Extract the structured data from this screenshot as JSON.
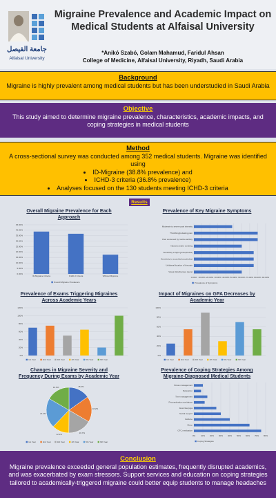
{
  "header": {
    "logo_arabic": "جامعة الفيصل",
    "logo_english": "Alfaisal University",
    "title": "Migraine Prevalence and Academic Impact on Medical Students at Alfaisal University",
    "authors": "*Anikó Szabó, Golam Mahamud, Faridul Ahsan",
    "affiliation": "College of Medicine, Alfaisal University, Riyadh, Saudi Arabia"
  },
  "background": {
    "heading": "Background",
    "text": "Migraine is highly prevalent among medical students but has been understudied in Saudi Arabia"
  },
  "objective": {
    "heading": "Objective",
    "text": "This study aimed to determine migraine prevalence, characteristics, academic impacts, and coping strategies in medical students"
  },
  "method": {
    "heading": "Method",
    "text": "A cross-sectional survey was conducted among 352 medical students. Migraine was identified using",
    "bullets": [
      "ID-Migraine (38.8% prevalence) and",
      "ICHD-3 criteria (36.8% prevalence)",
      "Analyses focused on the 130 students meeting ICHD-3 criteria"
    ]
  },
  "results_label": "Results",
  "chart_data": [
    {
      "type": "bar",
      "title": "Overall Migraine Prevalence for Each Approach",
      "categories": [
        "ID-Migraine Criteria",
        "ICHD-3 Criteria",
        "Without Migraine"
      ],
      "series": [
        {
          "name": "Overall Migraine Prevalence",
          "color": "#4472c4",
          "values": [
            38.8,
            36.8,
            17.6
          ]
        }
      ],
      "ylim": [
        0,
        45
      ],
      "yticks": [
        {
          "value": 0,
          "label": "0.00%"
        },
        {
          "value": 5,
          "label": "5.00%"
        },
        {
          "value": 10,
          "label": "10.00%"
        },
        {
          "value": 15,
          "label": "15.00%"
        },
        {
          "value": 20,
          "label": "20.00%"
        },
        {
          "value": 25,
          "label": "25.00%"
        },
        {
          "value": 30,
          "label": "30.00%"
        },
        {
          "value": 35,
          "label": "35.00%"
        },
        {
          "value": 40,
          "label": "40.00%"
        },
        {
          "value": 45,
          "label": "45.00%"
        }
      ]
    },
    {
      "type": "hbar",
      "title": "Prevalence of Key Migraine Symptoms",
      "categories": [
        "Moderate to severe pain intensity",
        "Throbbing/pulsating pain",
        "Pain worsened by routine activity",
        "Nausea and/or vomiting",
        "Sensitivity to light (photophobia)",
        "Sensitivity to sound (phonophobia)",
        "Unilateral location of the pain",
        "Visual disturbances (aura)"
      ],
      "series": [
        {
          "name": "Prevalence of Symptoms",
          "color": "#4472c4",
          "values": [
            48,
            80,
            80,
            60,
            75,
            75,
            75,
            60
          ]
        }
      ],
      "xlim": [
        0,
        90
      ],
      "xticks": [
        {
          "value": 0,
          "label": "0.00%"
        },
        {
          "value": 10,
          "label": "10.00%"
        },
        {
          "value": 20,
          "label": "20.00%"
        },
        {
          "value": 30,
          "label": "30.00%"
        },
        {
          "value": 40,
          "label": "40.00%"
        },
        {
          "value": 50,
          "label": "50.00%"
        },
        {
          "value": 60,
          "label": "60.00%"
        },
        {
          "value": 70,
          "label": "70.00%"
        },
        {
          "value": 80,
          "label": "80.00%"
        },
        {
          "value": 90,
          "label": "90.00%"
        }
      ]
    },
    {
      "type": "bar",
      "title": "Prevalence of Exams Triggering Migraines Across Academic Years",
      "categories": [
        "1st Year",
        "2nd Year",
        "3rd Year",
        "4th Year",
        "5th Year",
        "6th Year"
      ],
      "values": [
        70,
        75,
        50,
        65,
        20,
        100
      ],
      "colors": [
        "#4472c4",
        "#ed7d31",
        "#a5a5a5",
        "#ffc000",
        "#5b9bd5",
        "#70ad47"
      ],
      "ylim": [
        0,
        120
      ],
      "yticks": [
        {
          "value": 0,
          "label": "0%"
        },
        {
          "value": 20,
          "label": "20%"
        },
        {
          "value": 40,
          "label": "40%"
        },
        {
          "value": 60,
          "label": "60%"
        },
        {
          "value": 80,
          "label": "80%"
        },
        {
          "value": 100,
          "label": "100%"
        },
        {
          "value": 120,
          "label": "120%"
        }
      ]
    },
    {
      "type": "bar",
      "title": "Impact of Migraines on GPA Decreases by Academic Year",
      "categories": [
        "1st Year",
        "2nd Year",
        "3rd Year",
        "4th Year",
        "5th Year",
        "6th Year"
      ],
      "values": [
        25,
        55,
        90,
        30,
        70,
        55
      ],
      "colors": [
        "#4472c4",
        "#ed7d31",
        "#a5a5a5",
        "#ffc000",
        "#5b9bd5",
        "#70ad47"
      ],
      "ylim": [
        0,
        100
      ],
      "yticks": [
        {
          "value": 0,
          "label": "0%"
        },
        {
          "value": 20,
          "label": "20%"
        },
        {
          "value": 40,
          "label": "40%"
        },
        {
          "value": 60,
          "label": "60%"
        },
        {
          "value": 80,
          "label": "80%"
        },
        {
          "value": 100,
          "label": "100%"
        }
      ]
    },
    {
      "type": "pie",
      "title": "Changes in Migraine Severity and Frequency During Exams by Academic Year",
      "categories": [
        "1st Year",
        "2nd Year",
        "3rd Year",
        "4th Year",
        "5th Year",
        "6th Year"
      ],
      "values": [
        15.2,
        18.2,
        16.7,
        12.1,
        21.2,
        16.6
      ],
      "value_labels": [
        "15.2%",
        "18.2%",
        "16.7%",
        "12.1%",
        "21.2%",
        "16.6%"
      ],
      "colors": [
        "#4472c4",
        "#ed7d31",
        "#a5a5a5",
        "#ffc000",
        "#5b9bd5",
        "#70ad47"
      ]
    },
    {
      "type": "hbar",
      "title": "Prevalence of Coping Strategies Among Migraine-Diagnosed Medical Students",
      "categories": [
        "Stress management",
        "Relaxation",
        "Time management",
        "Procrastination avoidance",
        "Exercise/yoga",
        "Social support",
        "Caffeine",
        "Sleep",
        "OTC medication"
      ],
      "series": [
        {
          "name": "Coping Strategies",
          "color": "#4472c4",
          "values": [
            10,
            8,
            15,
            12,
            25,
            30,
            40,
            62,
            75
          ]
        }
      ],
      "xlim": [
        0,
        80
      ],
      "xticks": [
        {
          "value": 0,
          "label": "0%"
        },
        {
          "value": 10,
          "label": "10%"
        },
        {
          "value": 20,
          "label": "20%"
        },
        {
          "value": 30,
          "label": "30%"
        },
        {
          "value": 40,
          "label": "40%"
        },
        {
          "value": 50,
          "label": "50%"
        },
        {
          "value": 60,
          "label": "60%"
        },
        {
          "value": 70,
          "label": "70%"
        },
        {
          "value": 80,
          "label": "80%"
        }
      ]
    }
  ],
  "conclusion": {
    "heading": "Conclusion",
    "text": "Migraine prevalence exceeded general population estimates, frequently disrupted academics, and was exacerbated by exam stressors. Support services and education on coping strategies tailored to academically-triggered migraine could better equip students to manage headaches"
  }
}
